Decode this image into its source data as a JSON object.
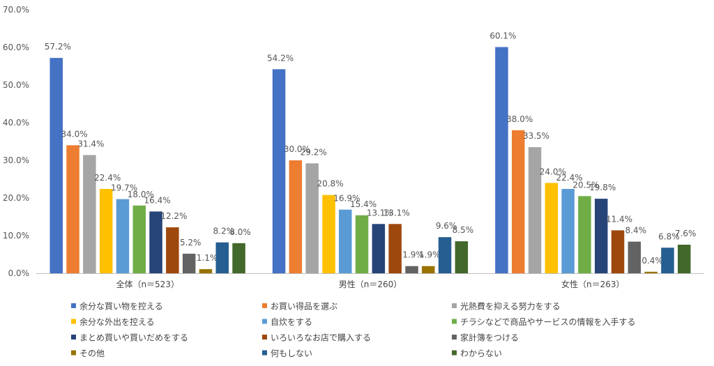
{
  "chart_data": {
    "type": "bar",
    "title": "",
    "xlabel": "",
    "ylabel": "",
    "ylim": [
      0,
      70
    ],
    "ytick_step": 10,
    "ytick_labels": [
      "0.0%",
      "10.0%",
      "20.0%",
      "30.0%",
      "40.0%",
      "50.0%",
      "60.0%",
      "70.0%"
    ],
    "grid": false,
    "legend_position": "bottom",
    "categories": [
      "全体（n＝523）",
      "男性（n＝260）",
      "女性（n＝263）"
    ],
    "series": [
      {
        "name": "余分な買い物を控える",
        "color": "#4472C4",
        "values": [
          57.2,
          54.2,
          60.1
        ],
        "labels": [
          "57.2%",
          "54.2%",
          "60.1%"
        ]
      },
      {
        "name": "お買い得品を選ぶ",
        "color": "#ED7D31",
        "values": [
          34.0,
          30.0,
          38.0
        ],
        "labels": [
          "34.0%",
          "30.0%",
          "38.0%"
        ]
      },
      {
        "name": "光熱費を抑える努力をする",
        "color": "#A5A5A5",
        "values": [
          31.4,
          29.2,
          33.5
        ],
        "labels": [
          "31.4%",
          "29.2%",
          "33.5%"
        ]
      },
      {
        "name": "余分な外出を控える",
        "color": "#FFC000",
        "values": [
          22.4,
          20.8,
          24.0
        ],
        "labels": [
          "22.4%",
          "20.8%",
          "24.0%"
        ]
      },
      {
        "name": "自炊をする",
        "color": "#5B9BD5",
        "values": [
          19.7,
          16.9,
          22.4
        ],
        "labels": [
          "19.7%",
          "16.9%",
          "22.4%"
        ]
      },
      {
        "name": "チラシなどで商品やサービスの情報を入手する",
        "color": "#70AD47",
        "values": [
          18.0,
          15.4,
          20.5
        ],
        "labels": [
          "18.0%",
          "15.4%",
          "20.5%"
        ]
      },
      {
        "name": "まとめ買いや買いだめをする",
        "color": "#264478",
        "values": [
          16.4,
          13.1,
          19.8
        ],
        "labels": [
          "16.4%",
          "13.1%",
          "19.8%"
        ]
      },
      {
        "name": "いろいろなお店で購入する",
        "color": "#9E480E",
        "values": [
          12.2,
          13.1,
          11.4
        ],
        "labels": [
          "12.2%",
          "13.1%",
          "11.4%"
        ]
      },
      {
        "name": "家計簿をつける",
        "color": "#636363",
        "values": [
          5.2,
          1.9,
          8.4
        ],
        "labels": [
          "5.2%",
          "1.9%",
          "8.4%"
        ]
      },
      {
        "name": "その他",
        "color": "#997300",
        "values": [
          1.1,
          1.9,
          0.4
        ],
        "labels": [
          "1.1%",
          "1.9%",
          "0.4%"
        ]
      },
      {
        "name": "何もしない",
        "color": "#255E91",
        "values": [
          8.2,
          9.6,
          6.8
        ],
        "labels": [
          "8.2%",
          "9.6%",
          "6.8%"
        ]
      },
      {
        "name": "わからない",
        "color": "#43682B",
        "values": [
          8.0,
          8.5,
          7.6
        ],
        "labels": [
          "8.0%",
          "8.5%",
          "7.6%"
        ]
      }
    ]
  }
}
